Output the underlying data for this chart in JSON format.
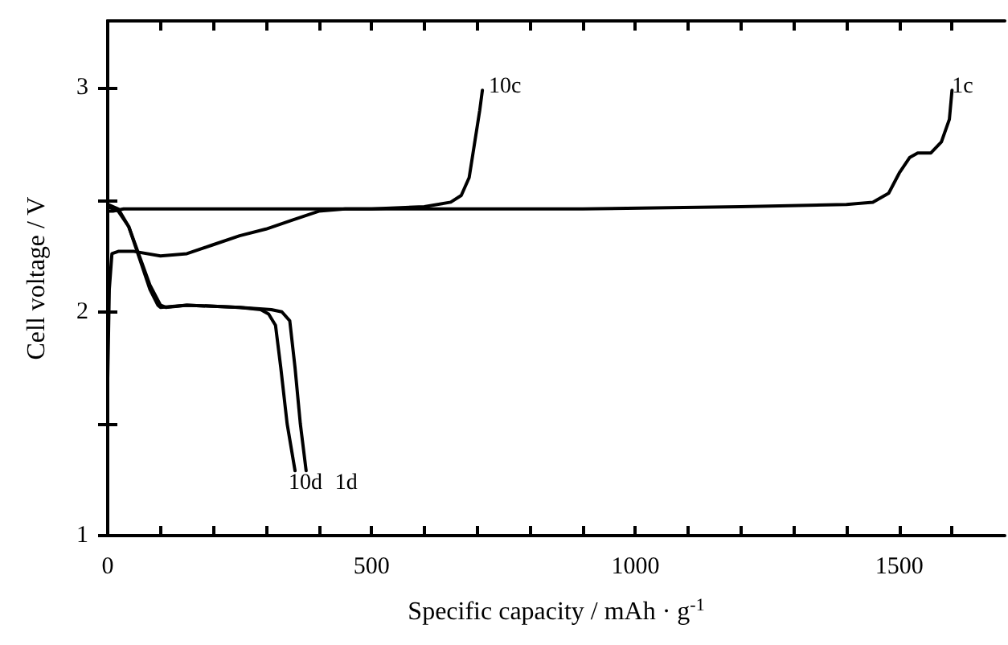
{
  "chart_data": {
    "type": "line",
    "xlabel": "Specific capacity / mAh · g$^{-1}$",
    "ylabel": "Cell voltage / V",
    "xlim": [
      0,
      1700
    ],
    "ylim": [
      1,
      3.3
    ],
    "xticks": [
      0,
      {
        "value": 100,
        "label": null
      },
      {
        "value": 200,
        "label": null
      },
      {
        "value": 300,
        "label": null
      },
      {
        "value": 400,
        "label": null
      },
      500,
      {
        "value": 600,
        "label": null
      },
      {
        "value": 700,
        "label": null
      },
      {
        "value": 800,
        "label": null
      },
      {
        "value": 900,
        "label": null
      },
      1000,
      {
        "value": 1100,
        "label": null
      },
      {
        "value": 1200,
        "label": null
      },
      {
        "value": 1300,
        "label": null
      },
      {
        "value": 1400,
        "label": null
      },
      1500,
      {
        "value": 1600,
        "label": null
      }
    ],
    "yticks": [
      1,
      {
        "value": 1.5,
        "label": null
      },
      2,
      {
        "value": 2.5,
        "label": null
      },
      3
    ],
    "grid": false,
    "legend": false,
    "marker": "none",
    "line_style": "solid",
    "series": [
      {
        "name": "1c",
        "color": "#000000",
        "x": [
          0,
          10,
          30,
          100,
          300,
          600,
          900,
          1200,
          1400,
          1450,
          1480,
          1500,
          1520,
          1535,
          1560,
          1580,
          1595,
          1600
        ],
        "values": [
          2.45,
          2.45,
          2.46,
          2.46,
          2.46,
          2.46,
          2.46,
          2.47,
          2.48,
          2.49,
          2.53,
          2.62,
          2.69,
          2.71,
          2.71,
          2.76,
          2.86,
          2.99
        ]
      },
      {
        "name": "10c",
        "color": "#000000",
        "x": [
          0,
          3,
          8,
          20,
          50,
          100,
          150,
          200,
          250,
          300,
          350,
          400,
          450,
          500,
          600,
          650,
          670,
          685,
          695,
          705,
          710
        ],
        "values": [
          1.7,
          2.1,
          2.26,
          2.27,
          2.27,
          2.25,
          2.26,
          2.3,
          2.34,
          2.37,
          2.41,
          2.45,
          2.46,
          2.46,
          2.47,
          2.49,
          2.52,
          2.6,
          2.75,
          2.9,
          2.99
        ]
      },
      {
        "name": "1d",
        "color": "#000000",
        "x": [
          0,
          20,
          40,
          60,
          80,
          100,
          110,
          150,
          250,
          310,
          330,
          345,
          355,
          365,
          376
        ],
        "values": [
          2.48,
          2.46,
          2.38,
          2.25,
          2.12,
          2.03,
          2.02,
          2.03,
          2.02,
          2.01,
          2.0,
          1.96,
          1.75,
          1.5,
          1.29
        ]
      },
      {
        "name": "10d",
        "color": "#000000",
        "x": [
          0,
          20,
          40,
          60,
          80,
          95,
          100,
          150,
          250,
          290,
          305,
          318,
          328,
          340,
          355
        ],
        "values": [
          2.47,
          2.45,
          2.38,
          2.24,
          2.1,
          2.03,
          2.02,
          2.03,
          2.02,
          2.01,
          1.99,
          1.94,
          1.75,
          1.5,
          1.29
        ]
      }
    ]
  }
}
